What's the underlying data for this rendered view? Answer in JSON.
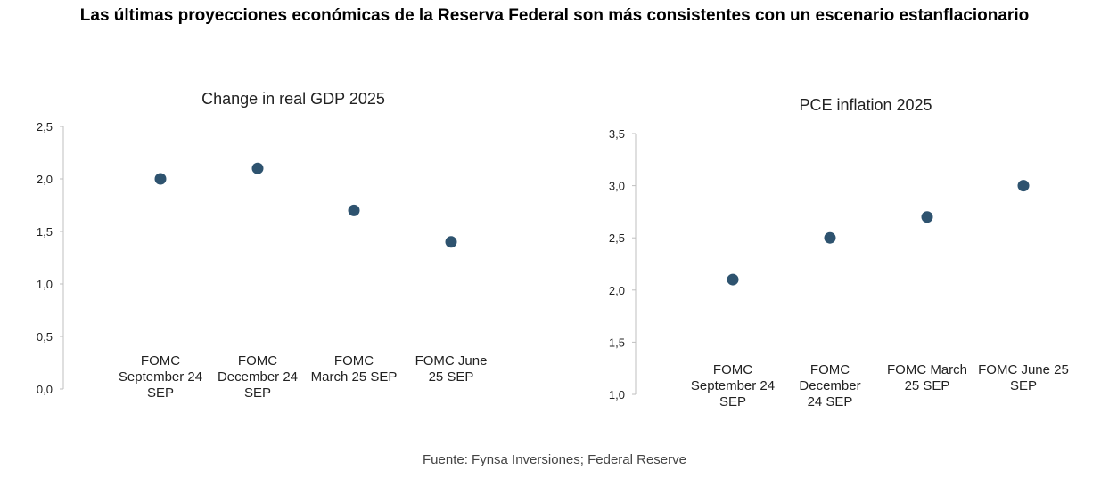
{
  "title": "Las últimas proyecciones económicas de la Reserva Federal son más consistentes con un escenario estanflacionario",
  "source": "Fuente: Fynsa Inversiones; Federal Reserve",
  "chart_data": [
    {
      "type": "scatter",
      "title": "Change in real GDP 2025",
      "categories": [
        [
          "FOMC",
          "September 24",
          "SEP"
        ],
        [
          "FOMC",
          "December 24",
          "SEP"
        ],
        [
          "FOMC",
          "March 25 SEP"
        ],
        [
          "FOMC June",
          "25 SEP"
        ]
      ],
      "values": [
        2.0,
        2.1,
        1.7,
        1.4
      ],
      "ylim": [
        0,
        2.5
      ],
      "yticks": [
        "0,0",
        "0,5",
        "1,0",
        "1,5",
        "2,0",
        "2,5"
      ],
      "marker_color": "#2e536f",
      "grid": false
    },
    {
      "type": "scatter",
      "title": "PCE inflation 2025",
      "categories": [
        [
          "FOMC",
          "September 24",
          "SEP"
        ],
        [
          "FOMC",
          "December",
          "24 SEP"
        ],
        [
          "FOMC March",
          "25 SEP"
        ],
        [
          "FOMC June 25",
          "SEP"
        ]
      ],
      "values": [
        2.1,
        2.5,
        2.7,
        3.0
      ],
      "ylim": [
        1.0,
        3.5
      ],
      "yticks": [
        "1,0",
        "1,5",
        "2,0",
        "2,5",
        "3,0",
        "3,5"
      ],
      "marker_color": "#2e536f",
      "grid": false
    }
  ]
}
